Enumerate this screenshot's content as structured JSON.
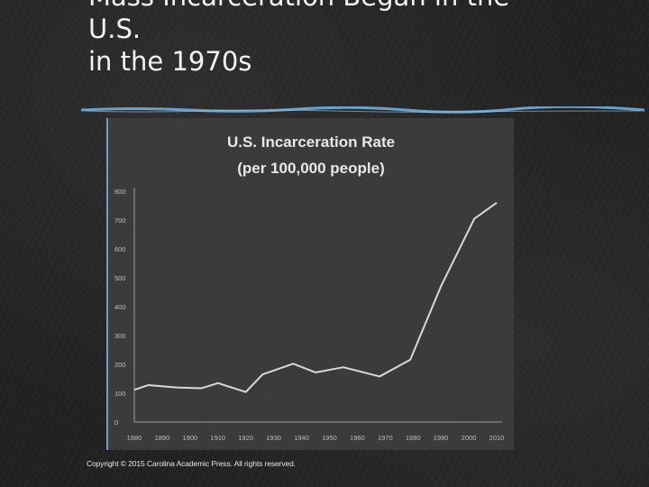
{
  "slide": {
    "title_lines": [
      "Mass Incarceration Began in the",
      "U.S.",
      "in the 1970s"
    ],
    "copyright": "Copyright © 2015 Carolina Academic Press. All rights reserved."
  },
  "colors": {
    "rule": "#6fb0e0",
    "line": "#d9d9d9",
    "axis_text": "#bfbfbf",
    "title_text": "#f2f2f2"
  },
  "chart_data": {
    "type": "line",
    "title": "U.S. Incarceration Rate",
    "subtitle": "(per 100,000 people)",
    "x": [
      1880,
      1890,
      1900,
      1910,
      1920,
      1930,
      1940,
      1950,
      1960,
      1970,
      1980,
      1990,
      2000,
      2010
    ],
    "x_tick_labels": [
      "1880",
      "1890",
      "1900",
      "1910",
      "1920",
      "1930",
      "1940",
      "1950",
      "1960",
      "1970",
      "1980",
      "1990",
      "2000",
      "2010"
    ],
    "series": [
      {
        "values": [
          112,
          128,
          120,
          117,
          135,
          104,
          165,
          202,
          172,
          190,
          158,
          216,
          470,
          705,
          760
        ]
      }
    ],
    "x_values": [
      1880,
      1885,
      1895,
      1904,
      1910,
      1920,
      1926,
      1937,
      1945,
      1955,
      1968,
      1979,
      1990,
      2002,
      2010
    ],
    "y_tick_labels": [
      "0",
      "100",
      "200",
      "300",
      "400",
      "500",
      "600",
      "700",
      "800"
    ],
    "ylim": [
      0,
      800
    ],
    "xlim": [
      1880,
      2010
    ],
    "grid": false,
    "legend": "none"
  }
}
